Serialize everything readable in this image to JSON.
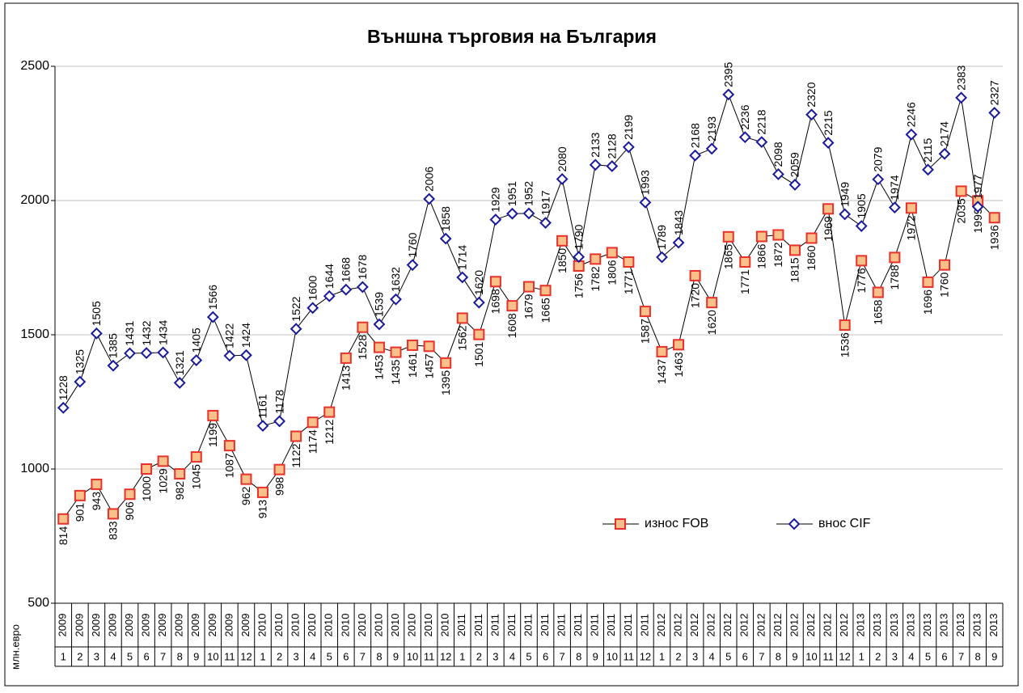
{
  "chart_data": {
    "type": "line",
    "title": "Външна търговия на България",
    "y_label": "млн.евро",
    "categories": [
      [
        "2009",
        "1"
      ],
      [
        "2009",
        "2"
      ],
      [
        "2009",
        "3"
      ],
      [
        "2009",
        "4"
      ],
      [
        "2009",
        "5"
      ],
      [
        "2009",
        "6"
      ],
      [
        "2009",
        "7"
      ],
      [
        "2009",
        "8"
      ],
      [
        "2009",
        "9"
      ],
      [
        "2009",
        "10"
      ],
      [
        "2009",
        "11"
      ],
      [
        "2009",
        "12"
      ],
      [
        "2010",
        "1"
      ],
      [
        "2010",
        "2"
      ],
      [
        "2010",
        "3"
      ],
      [
        "2010",
        "4"
      ],
      [
        "2010",
        "5"
      ],
      [
        "2010",
        "6"
      ],
      [
        "2010",
        "7"
      ],
      [
        "2010",
        "8"
      ],
      [
        "2010",
        "9"
      ],
      [
        "2010",
        "10"
      ],
      [
        "2010",
        "11"
      ],
      [
        "2010",
        "12"
      ],
      [
        "2011",
        "1"
      ],
      [
        "2011",
        "2"
      ],
      [
        "2011",
        "3"
      ],
      [
        "2011",
        "4"
      ],
      [
        "2011",
        "5"
      ],
      [
        "2011",
        "6"
      ],
      [
        "2011",
        "7"
      ],
      [
        "2011",
        "8"
      ],
      [
        "2011",
        "9"
      ],
      [
        "2011",
        "10"
      ],
      [
        "2011",
        "11"
      ],
      [
        "2011",
        "12"
      ],
      [
        "2012",
        "1"
      ],
      [
        "2012",
        "2"
      ],
      [
        "2012",
        "3"
      ],
      [
        "2012",
        "4"
      ],
      [
        "2012",
        "5"
      ],
      [
        "2012",
        "6"
      ],
      [
        "2012",
        "7"
      ],
      [
        "2012",
        "8"
      ],
      [
        "2012",
        "9"
      ],
      [
        "2012",
        "10"
      ],
      [
        "2012",
        "11"
      ],
      [
        "2012",
        "12"
      ],
      [
        "2013",
        "1"
      ],
      [
        "2013",
        "2"
      ],
      [
        "2013",
        "3"
      ],
      [
        "2013",
        "4"
      ],
      [
        "2013",
        "5"
      ],
      [
        "2013",
        "6"
      ],
      [
        "2013",
        "7"
      ],
      [
        "2013",
        "8"
      ],
      [
        "2013",
        "9"
      ]
    ],
    "series": [
      {
        "name": "износ FOB",
        "color": "#e8312a",
        "fill": "#f9c08a",
        "marker": "square",
        "values": [
          814,
          901,
          943,
          833,
          906,
          1000,
          1029,
          982,
          1045,
          1199,
          1087,
          962,
          913,
          998,
          1122,
          1174,
          1212,
          1413,
          1528,
          1453,
          1435,
          1461,
          1457,
          1395,
          1562,
          1501,
          1698,
          1608,
          1679,
          1665,
          1850,
          1756,
          1782,
          1806,
          1771,
          1587,
          1437,
          1463,
          1720,
          1620,
          1865,
          1771,
          1866,
          1872,
          1815,
          1860,
          1969,
          1536,
          1776,
          1658,
          1788,
          1972,
          1696,
          1760,
          2035,
          1999,
          1936
        ]
      },
      {
        "name": "внос CIF",
        "color": "#1a1a9c",
        "fill": "#ffffff",
        "marker": "diamond",
        "values": [
          1228,
          1325,
          1505,
          1385,
          1431,
          1432,
          1434,
          1321,
          1405,
          1566,
          1422,
          1424,
          1161,
          1178,
          1522,
          1600,
          1644,
          1668,
          1678,
          1539,
          1632,
          1760,
          2006,
          1858,
          1714,
          1620,
          1929,
          1951,
          1952,
          1917,
          2080,
          1790,
          2133,
          2128,
          2199,
          1993,
          1789,
          1843,
          2168,
          2193,
          2395,
          2236,
          2218,
          2098,
          2059,
          2320,
          2215,
          1949,
          1905,
          2079,
          1974,
          2246,
          2115,
          2174,
          2383,
          1977,
          2327
        ]
      }
    ],
    "ylim": [
      500,
      2500
    ],
    "yticks": [
      500,
      1000,
      1500,
      2000,
      2500
    ],
    "grid": true
  }
}
